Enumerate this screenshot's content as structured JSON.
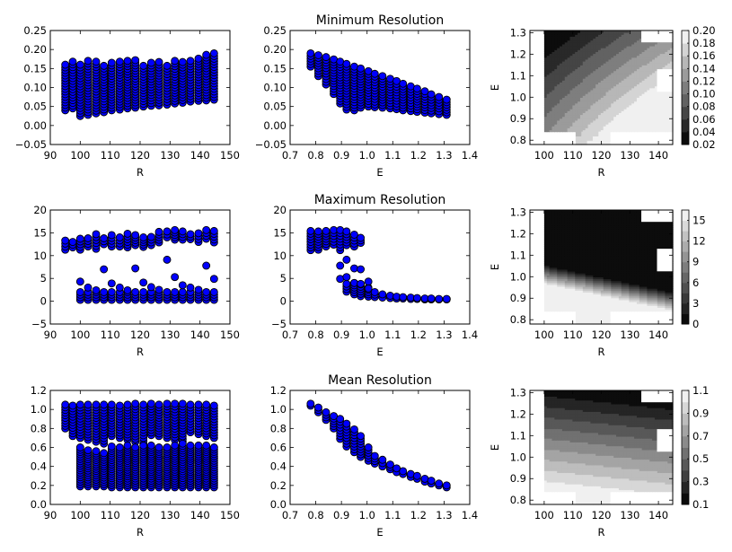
{
  "chart_data": [
    {
      "id": "min-vs-R",
      "type": "scatter",
      "title": "",
      "xlabel": "R",
      "ylabel": "",
      "xlim": [
        90,
        150
      ],
      "ylim": [
        -0.05,
        0.25
      ],
      "xticks": [
        "90",
        "100",
        "110",
        "120",
        "130",
        "140",
        "150"
      ],
      "yticks": [
        "−0.05",
        "0.00",
        "0.05",
        "0.10",
        "0.15",
        "0.20",
        "0.25"
      ],
      "ytick_values": [
        -0.05,
        0,
        0.05,
        0.1,
        0.15,
        0.2,
        0.25
      ],
      "xtick_values": [
        90,
        100,
        110,
        120,
        130,
        140,
        150
      ],
      "x": [
        95,
        97.5,
        100,
        102.6,
        105.3,
        107.9,
        110.5,
        113.2,
        115.8,
        118.4,
        121.1,
        123.7,
        126.3,
        129,
        131.6,
        134.2,
        136.8,
        139.5,
        142.1,
        144.7
      ],
      "y_min": [
        0.04,
        0.045,
        0.025,
        0.028,
        0.032,
        0.035,
        0.04,
        0.042,
        0.045,
        0.047,
        0.05,
        0.052,
        0.053,
        0.055,
        0.058,
        0.06,
        0.063,
        0.065,
        0.066,
        0.068
      ],
      "y_max": [
        0.16,
        0.168,
        0.16,
        0.17,
        0.168,
        0.157,
        0.165,
        0.168,
        0.17,
        0.172,
        0.157,
        0.165,
        0.167,
        0.157,
        0.17,
        0.167,
        0.17,
        0.176,
        0.186,
        0.19
      ],
      "color": "#0000ff"
    },
    {
      "id": "min-vs-E",
      "type": "scatter",
      "title": "Minimum Resolution",
      "xlabel": "E",
      "ylabel": "",
      "xlim": [
        0.7,
        1.4
      ],
      "ylim": [
        -0.05,
        0.25
      ],
      "xticks": [
        "0.7",
        "0.8",
        "0.9",
        "1.0",
        "1.1",
        "1.2",
        "1.3",
        "1.4"
      ],
      "xtick_values": [
        0.7,
        0.8,
        0.9,
        1.0,
        1.1,
        1.2,
        1.3,
        1.4
      ],
      "yticks": [
        "−0.05",
        "0.00",
        "0.05",
        "0.10",
        "0.15",
        "0.20",
        "0.25"
      ],
      "ytick_values": [
        -0.05,
        0,
        0.05,
        0.1,
        0.15,
        0.2,
        0.25
      ],
      "x": [
        0.78,
        0.81,
        0.84,
        0.87,
        0.895,
        0.92,
        0.95,
        0.975,
        1.005,
        1.03,
        1.06,
        1.09,
        1.115,
        1.14,
        1.17,
        1.195,
        1.225,
        1.25,
        1.28,
        1.31
      ],
      "y_min": [
        0.155,
        0.13,
        0.108,
        0.083,
        0.058,
        0.042,
        0.04,
        0.047,
        0.05,
        0.048,
        0.047,
        0.045,
        0.043,
        0.04,
        0.038,
        0.036,
        0.034,
        0.032,
        0.03,
        0.028
      ],
      "y_max": [
        0.19,
        0.185,
        0.18,
        0.174,
        0.168,
        0.162,
        0.155,
        0.15,
        0.143,
        0.136,
        0.13,
        0.123,
        0.117,
        0.11,
        0.103,
        0.097,
        0.09,
        0.082,
        0.075,
        0.068
      ],
      "color": "#0000ff"
    },
    {
      "id": "min-contour",
      "type": "heatmap",
      "title": "",
      "xlabel": "R",
      "ylabel": "E",
      "xlim": [
        95,
        145
      ],
      "ylim": [
        0.78,
        1.31
      ],
      "xticks": [
        "100",
        "110",
        "120",
        "130",
        "140"
      ],
      "xtick_values": [
        100,
        110,
        120,
        130,
        140
      ],
      "yticks": [
        "0.8",
        "0.9",
        "1.0",
        "1.1",
        "1.2",
        "1.3"
      ],
      "ytick_values": [
        0.8,
        0.9,
        1.0,
        1.1,
        1.2,
        1.3
      ],
      "colorbar_ticks": [
        "0.02",
        "0.04",
        "0.06",
        "0.08",
        "0.10",
        "0.12",
        "0.14",
        "0.16",
        "0.18",
        "0.20"
      ],
      "levels": [
        0.02,
        0.2
      ],
      "num_levels": 9
    },
    {
      "id": "max-vs-R",
      "type": "scatter",
      "title": "",
      "xlabel": "R",
      "ylabel": "",
      "xlim": [
        90,
        150
      ],
      "ylim": [
        -5,
        20
      ],
      "xticks": [
        "90",
        "100",
        "110",
        "120",
        "130",
        "140",
        "150"
      ],
      "xtick_values": [
        90,
        100,
        110,
        120,
        130,
        140,
        150
      ],
      "yticks": [
        "−5",
        "0",
        "5",
        "10",
        "15",
        "20"
      ],
      "ytick_values": [
        -5,
        0,
        5,
        10,
        15,
        20
      ],
      "x": [
        95,
        97.5,
        100,
        102.6,
        105.3,
        107.9,
        110.5,
        113.2,
        115.8,
        118.4,
        121.1,
        123.7,
        126.3,
        129,
        131.6,
        134.2,
        136.8,
        139.5,
        142.1,
        144.7
      ],
      "upper_min": [
        11.3,
        11.8,
        11.3,
        12,
        11.5,
        12.5,
        12,
        12,
        11.8,
        12.3,
        11.9,
        12.3,
        12.9,
        14,
        13.5,
        13.5,
        13.6,
        13,
        13.7,
        12.9
      ],
      "upper_max": [
        13.3,
        13,
        13.7,
        13.8,
        14.7,
        13.8,
        14.5,
        14,
        14.8,
        14.5,
        14,
        14.1,
        15.2,
        15.3,
        15.6,
        15.3,
        14.7,
        14.9,
        15.6,
        15.4
      ],
      "outliers": [
        null,
        null,
        4.3,
        3,
        2.4,
        7,
        3.9,
        3,
        2.4,
        7.2,
        4.1,
        3.1,
        2.5,
        9.1,
        5.3,
        3.5,
        3,
        2.5,
        7.8,
        4.9
      ],
      "lower_min": [
        null,
        null,
        0.3,
        0.3,
        0.3,
        0.3,
        0.3,
        0.3,
        0.3,
        0.3,
        0.3,
        0.3,
        0.3,
        0.3,
        0.3,
        0.3,
        0.3,
        0.3,
        0.3,
        0.3
      ],
      "lower_max": [
        null,
        null,
        2,
        2,
        2,
        2,
        2,
        2,
        2,
        2,
        2,
        2,
        2,
        2,
        2,
        2,
        2,
        2,
        2,
        2
      ],
      "color": "#0000ff"
    },
    {
      "id": "max-vs-E",
      "type": "scatter",
      "title": "Maximum Resolution",
      "xlabel": "E",
      "ylabel": "",
      "xlim": [
        0.7,
        1.4
      ],
      "ylim": [
        -5,
        20
      ],
      "xticks": [
        "0.7",
        "0.8",
        "0.9",
        "1.0",
        "1.1",
        "1.2",
        "1.3",
        "1.4"
      ],
      "xtick_values": [
        0.7,
        0.8,
        0.9,
        1.0,
        1.1,
        1.2,
        1.3,
        1.4
      ],
      "yticks": [
        "−5",
        "0",
        "5",
        "10",
        "15",
        "20"
      ],
      "ytick_values": [
        -5,
        0,
        5,
        10,
        15,
        20
      ],
      "x": [
        0.78,
        0.81,
        0.84,
        0.87,
        0.895,
        0.92,
        0.95,
        0.975,
        1.005,
        1.03,
        1.06,
        1.09,
        1.115,
        1.14,
        1.17,
        1.195,
        1.225,
        1.25,
        1.28,
        1.31
      ],
      "upper_min": [
        11.2,
        11.3,
        12,
        12.4,
        11.2,
        12.3,
        12,
        12.8,
        null,
        null,
        null,
        null,
        null,
        null,
        null,
        null,
        null,
        null,
        null,
        null
      ],
      "upper_max": [
        15.4,
        15.3,
        15.4,
        15.6,
        15.6,
        15.3,
        14.6,
        13.9,
        null,
        null,
        null,
        null,
        null,
        null,
        null,
        null,
        null,
        null,
        null,
        null
      ],
      "mid": [
        null,
        null,
        null,
        null,
        7.8,
        9.1,
        7.2,
        7,
        4.3,
        null,
        null,
        null,
        null,
        null,
        null,
        null,
        null,
        null,
        null,
        null
      ],
      "mid2": [
        null,
        null,
        null,
        null,
        4.9,
        5.3,
        4,
        3.8,
        2.8,
        null,
        null,
        null,
        null,
        null,
        null,
        null,
        null,
        null,
        null,
        null
      ],
      "lower_min": [
        null,
        null,
        null,
        null,
        null,
        2.1,
        1.5,
        1.1,
        1,
        0.9,
        0.8,
        0.7,
        0.6,
        0.6,
        0.5,
        0.5,
        0.4,
        0.4,
        0.4,
        0.4
      ],
      "lower_max": [
        null,
        null,
        null,
        null,
        null,
        3.8,
        4,
        3.7,
        3,
        2,
        1.5,
        1.2,
        1,
        0.9,
        0.8,
        0.7,
        0.6,
        0.6,
        0.5,
        0.5
      ],
      "color": "#0000ff"
    },
    {
      "id": "max-contour",
      "type": "heatmap",
      "title": "",
      "xlabel": "R",
      "ylabel": "E",
      "xlim": [
        95,
        145
      ],
      "ylim": [
        0.78,
        1.31
      ],
      "xticks": [
        "100",
        "110",
        "120",
        "130",
        "140"
      ],
      "xtick_values": [
        100,
        110,
        120,
        130,
        140
      ],
      "yticks": [
        "0.8",
        "0.9",
        "1.0",
        "1.1",
        "1.2",
        "1.3"
      ],
      "ytick_values": [
        0.8,
        0.9,
        1.0,
        1.1,
        1.2,
        1.3
      ],
      "colorbar_ticks": [
        "0",
        "3",
        "6",
        "9",
        "12",
        "15"
      ],
      "levels": [
        0,
        16.5
      ],
      "num_levels": 11
    },
    {
      "id": "mean-vs-R",
      "type": "scatter",
      "title": "",
      "xlabel": "R",
      "ylabel": "",
      "xlim": [
        90,
        150
      ],
      "ylim": [
        0.0,
        1.2
      ],
      "xticks": [
        "90",
        "100",
        "110",
        "120",
        "130",
        "140",
        "150"
      ],
      "xtick_values": [
        90,
        100,
        110,
        120,
        130,
        140,
        150
      ],
      "yticks": [
        "0.0",
        "0.2",
        "0.4",
        "0.6",
        "0.8",
        "1.0",
        "1.2"
      ],
      "ytick_values": [
        0,
        0.2,
        0.4,
        0.6,
        0.8,
        1.0,
        1.2
      ],
      "x": [
        95,
        97.5,
        100,
        102.6,
        105.3,
        107.9,
        110.5,
        113.2,
        115.8,
        118.4,
        121.1,
        123.7,
        126.3,
        129,
        131.6,
        134.2,
        136.8,
        139.5,
        142.1,
        144.7
      ],
      "upper_min": [
        0.8,
        0.72,
        0.7,
        0.68,
        0.66,
        0.64,
        0.72,
        0.7,
        0.68,
        0.66,
        0.64,
        0.73,
        0.72,
        0.7,
        0.68,
        0.66,
        0.76,
        0.74,
        0.72,
        0.7
      ],
      "upper_max": [
        1.05,
        1.04,
        1.05,
        1.05,
        1.05,
        1.05,
        1.05,
        1.04,
        1.05,
        1.06,
        1.05,
        1.06,
        1.05,
        1.06,
        1.06,
        1.06,
        1.05,
        1.05,
        1.05,
        1.04
      ],
      "lower_min": [
        null,
        null,
        0.19,
        0.19,
        0.19,
        0.19,
        0.18,
        0.18,
        0.18,
        0.18,
        0.18,
        0.18,
        0.18,
        0.18,
        0.18,
        0.18,
        0.18,
        0.18,
        0.18,
        0.18
      ],
      "lower_max": [
        null,
        null,
        0.6,
        0.57,
        0.56,
        0.54,
        0.61,
        0.6,
        0.62,
        0.6,
        0.62,
        0.62,
        0.6,
        0.6,
        0.62,
        0.64,
        0.62,
        0.62,
        0.62,
        0.6
      ],
      "color": "#0000ff"
    },
    {
      "id": "mean-vs-E",
      "type": "scatter",
      "title": "Mean Resolution",
      "xlabel": "E",
      "ylabel": "",
      "xlim": [
        0.7,
        1.4
      ],
      "ylim": [
        0.0,
        1.2
      ],
      "xticks": [
        "0.7",
        "0.8",
        "0.9",
        "1.0",
        "1.1",
        "1.2",
        "1.3",
        "1.4"
      ],
      "xtick_values": [
        0.7,
        0.8,
        0.9,
        1.0,
        1.1,
        1.2,
        1.3,
        1.4
      ],
      "yticks": [
        "0.0",
        "0.2",
        "0.4",
        "0.6",
        "0.8",
        "1.0",
        "1.2"
      ],
      "ytick_values": [
        0,
        0.2,
        0.4,
        0.6,
        0.8,
        1.0,
        1.2
      ],
      "x": [
        0.78,
        0.81,
        0.84,
        0.87,
        0.895,
        0.92,
        0.95,
        0.975,
        1.005,
        1.03,
        1.06,
        1.09,
        1.115,
        1.14,
        1.17,
        1.195,
        1.225,
        1.25,
        1.28,
        1.31
      ],
      "y_min": [
        1.04,
        0.97,
        0.89,
        0.8,
        0.69,
        0.61,
        0.55,
        0.5,
        0.46,
        0.43,
        0.4,
        0.37,
        0.34,
        0.32,
        0.29,
        0.27,
        0.24,
        0.22,
        0.2,
        0.18
      ],
      "y_max": [
        1.06,
        1.02,
        0.97,
        0.93,
        0.9,
        0.85,
        0.79,
        0.72,
        0.6,
        0.51,
        0.47,
        0.42,
        0.38,
        0.35,
        0.32,
        0.3,
        0.27,
        0.25,
        0.22,
        0.2
      ],
      "color": "#0000ff"
    },
    {
      "id": "mean-contour",
      "type": "heatmap",
      "title": "",
      "xlabel": "R",
      "ylabel": "E",
      "xlim": [
        95,
        145
      ],
      "ylim": [
        0.78,
        1.31
      ],
      "xticks": [
        "100",
        "110",
        "120",
        "130",
        "140"
      ],
      "xtick_values": [
        100,
        110,
        120,
        130,
        140
      ],
      "yticks": [
        "0.8",
        "0.9",
        "1.0",
        "1.1",
        "1.2",
        "1.3"
      ],
      "ytick_values": [
        0.8,
        0.9,
        1.0,
        1.1,
        1.2,
        1.3
      ],
      "colorbar_ticks": [
        "0.1",
        "0.3",
        "0.5",
        "0.7",
        "0.9",
        "1.1"
      ],
      "levels": [
        0.1,
        1.1
      ],
      "num_levels": 10
    }
  ]
}
